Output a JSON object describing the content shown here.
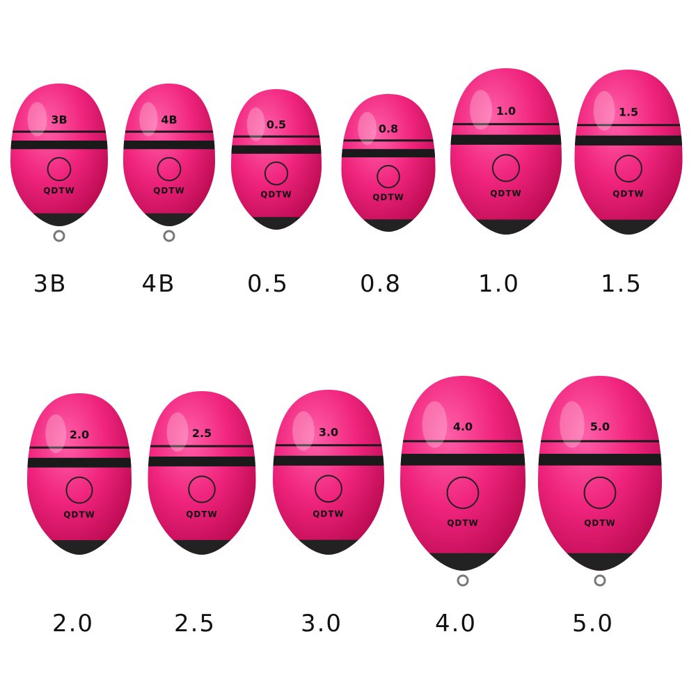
{
  "brand": "QDTW",
  "rows": [
    {
      "items": [
        {
          "label": "3B"
        },
        {
          "label": "4B"
        },
        {
          "label": "0.5"
        },
        {
          "label": "0.8"
        },
        {
          "label": "1.0"
        },
        {
          "label": "1.5"
        }
      ]
    },
    {
      "items": [
        {
          "label": "2.0"
        },
        {
          "label": "2.5"
        },
        {
          "label": "3.0"
        },
        {
          "label": "4.0"
        },
        {
          "label": "5.0"
        }
      ]
    }
  ]
}
